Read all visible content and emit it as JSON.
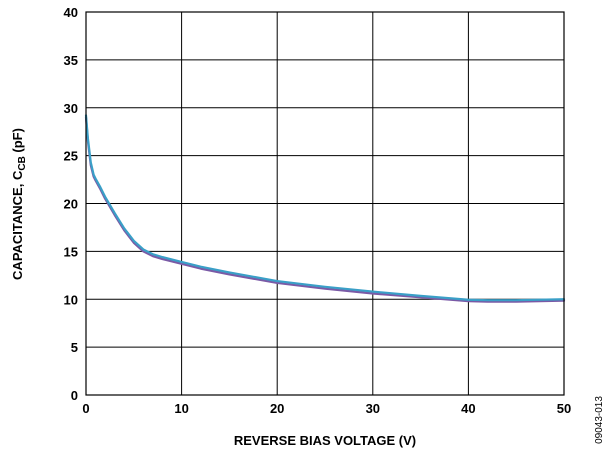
{
  "figure_id": "09043-013",
  "chart_data": {
    "type": "line",
    "xlabel": "REVERSE BIAS VOLTAGE (V)",
    "ylabel": {
      "prefix": "CAPACITANCE, C",
      "subscript": "CB",
      "suffix": " (pF)"
    },
    "xlim": [
      0,
      50
    ],
    "ylim": [
      0,
      40
    ],
    "x_ticks": [
      "0",
      "10",
      "20",
      "30",
      "40",
      "50"
    ],
    "y_ticks": [
      "0",
      "5",
      "10",
      "15",
      "20",
      "25",
      "30",
      "35",
      "40"
    ],
    "grid": true,
    "series": [
      {
        "color": "#7a5aa6",
        "x": [
          0,
          0.2,
          0.5,
          0.8,
          1,
          1.5,
          2,
          3,
          4,
          5,
          6,
          7,
          8,
          10,
          12,
          15,
          20,
          25,
          30,
          35,
          40,
          42,
          45,
          50
        ],
        "y": [
          29.0,
          26.5,
          24.0,
          22.8,
          22.4,
          21.5,
          20.5,
          18.8,
          17.2,
          15.9,
          15.0,
          14.5,
          14.2,
          13.7,
          13.2,
          12.6,
          11.7,
          11.1,
          10.6,
          10.2,
          9.8,
          9.75,
          9.75,
          9.85
        ]
      },
      {
        "color": "#3a9fc7",
        "x": [
          0,
          0.2,
          0.5,
          0.8,
          1,
          1.5,
          2,
          3,
          4,
          5,
          6,
          7,
          8,
          10,
          12,
          15,
          20,
          25,
          30,
          35,
          40,
          42,
          45,
          50
        ],
        "y": [
          29.2,
          26.8,
          24.3,
          23.0,
          22.6,
          21.7,
          20.7,
          19.0,
          17.4,
          16.1,
          15.2,
          14.7,
          14.4,
          13.9,
          13.4,
          12.8,
          11.9,
          11.3,
          10.8,
          10.35,
          9.95,
          9.9,
          9.9,
          10.0
        ]
      }
    ]
  }
}
